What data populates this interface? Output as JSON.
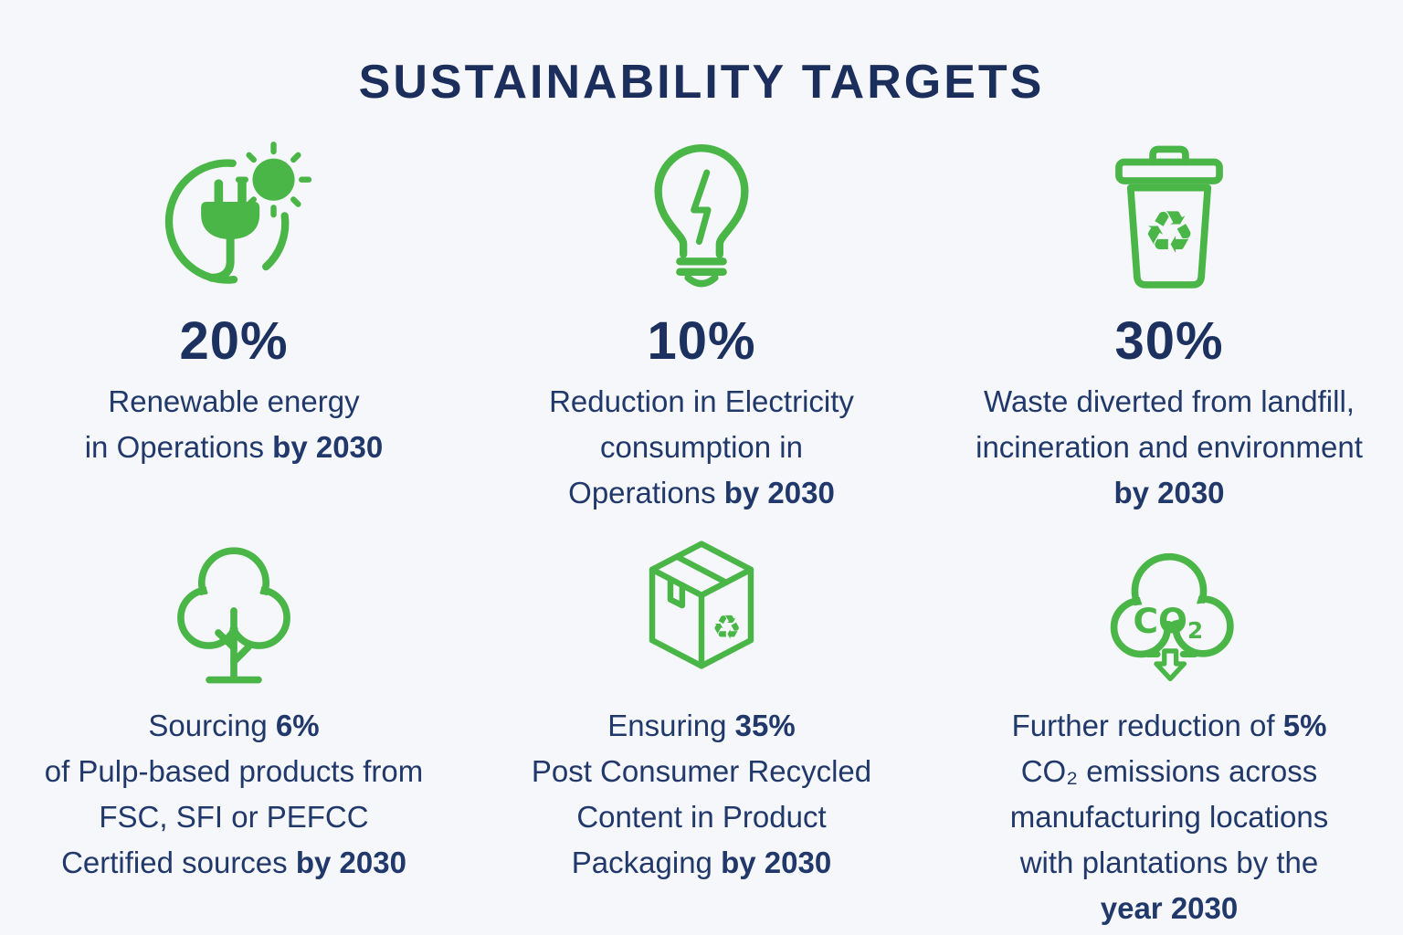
{
  "title": "SUSTAINABILITY TARGETS",
  "colors": {
    "green": "#4bb648",
    "navy": "#1d3160",
    "background": "#f5f7fa"
  },
  "cards": [
    {
      "id": "renewable-energy",
      "icon": "plug-sun-icon",
      "stat": "20%",
      "lines": [
        [
          {
            "t": "Renewable energy"
          }
        ],
        [
          {
            "t": "in Operations "
          },
          {
            "t": "by 2030",
            "b": true
          }
        ]
      ]
    },
    {
      "id": "electricity-reduction",
      "icon": "lightbulb-bolt-icon",
      "stat": "10%",
      "lines": [
        [
          {
            "t": "Reduction in Electricity"
          }
        ],
        [
          {
            "t": "consumption in"
          }
        ],
        [
          {
            "t": "Operations "
          },
          {
            "t": "by 2030",
            "b": true
          }
        ]
      ]
    },
    {
      "id": "waste-diversion",
      "icon": "recycle-bin-icon",
      "stat": "30%",
      "lines": [
        [
          {
            "t": "Waste diverted from landfill,"
          }
        ],
        [
          {
            "t": "incineration and environment"
          }
        ],
        [
          {
            "t": "by 2030",
            "b": true
          }
        ]
      ]
    },
    {
      "id": "certified-sourcing",
      "icon": "tree-icon",
      "stat": "",
      "lines": [
        [
          {
            "t": "Sourcing "
          },
          {
            "t": "6%",
            "b": true
          }
        ],
        [
          {
            "t": "of Pulp-based products from"
          }
        ],
        [
          {
            "t": "FSC, SFI or PEFCC"
          }
        ],
        [
          {
            "t": "Certified sources "
          },
          {
            "t": "by 2030",
            "b": true
          }
        ]
      ]
    },
    {
      "id": "recycled-packaging",
      "icon": "recycled-box-icon",
      "stat": "",
      "lines": [
        [
          {
            "t": "Ensuring "
          },
          {
            "t": "35%",
            "b": true
          }
        ],
        [
          {
            "t": "Post Consumer Recycled"
          }
        ],
        [
          {
            "t": "Content in Product"
          }
        ],
        [
          {
            "t": "Packaging "
          },
          {
            "t": "by 2030",
            "b": true
          }
        ]
      ]
    },
    {
      "id": "co2-reduction",
      "icon": "co2-cloud-icon",
      "stat": "",
      "lines": [
        [
          {
            "t": "Further reduction of "
          },
          {
            "t": "5%",
            "b": true
          }
        ],
        [
          {
            "t": "CO₂ emissions across"
          }
        ],
        [
          {
            "t": "manufacturing locations"
          }
        ],
        [
          {
            "t": "with plantations by the"
          }
        ],
        [
          {
            "t": "year 2030",
            "b": true
          }
        ]
      ]
    }
  ],
  "icons": {
    "recycle_symbol": "♻",
    "co2_text": "CO",
    "co2_sub": "2"
  }
}
